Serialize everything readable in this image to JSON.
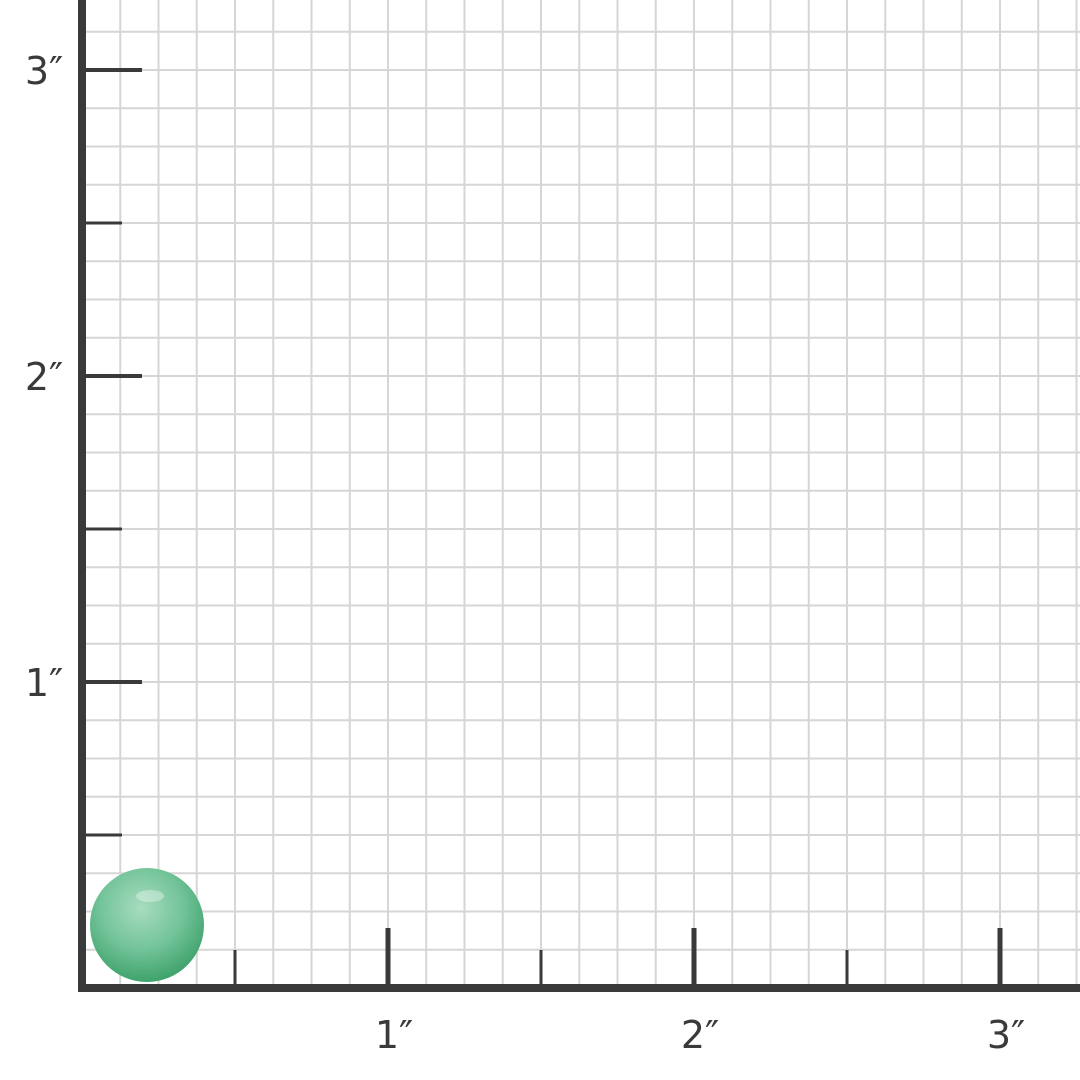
{
  "scale": {
    "unit": "inch",
    "x_labels": [
      "1″",
      "2″",
      "3″"
    ],
    "y_labels": [
      "1″",
      "2″",
      "3″"
    ],
    "grid_divisions_per_inch": 8,
    "colors": {
      "axis": "#3a3a3a",
      "grid": "#d6d6d6",
      "bead": "#6cc195"
    }
  },
  "product": {
    "name": "green-bead",
    "color": "#6cc195"
  }
}
